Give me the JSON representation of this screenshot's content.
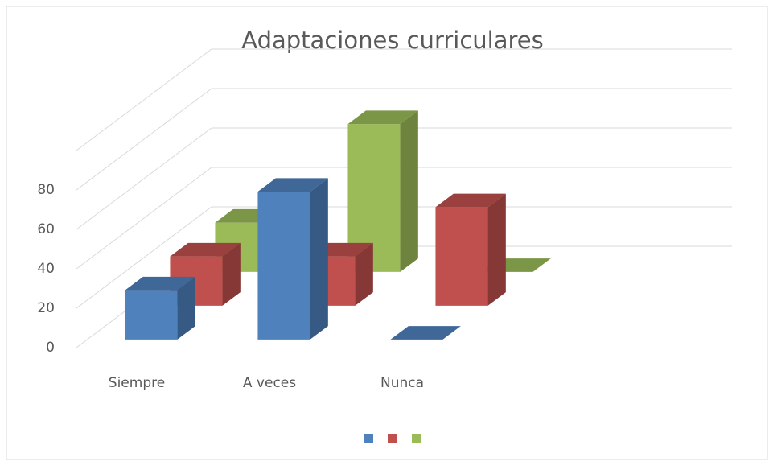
{
  "chart_data": {
    "type": "bar3d",
    "title": "Adaptaciones curriculares",
    "categories": [
      "Siempre",
      "A veces",
      "Nunca"
    ],
    "series": [
      {
        "color": "#4f81bd",
        "values": [
          25,
          75,
          0
        ]
      },
      {
        "color": "#c0504d",
        "values": [
          25,
          25,
          50
        ]
      },
      {
        "color": "#9bbb59",
        "values": [
          25,
          75,
          0
        ]
      }
    ],
    "ylim": [
      0,
      100
    ],
    "yticks": [
      0,
      20,
      40,
      60,
      80
    ],
    "grid": true
  }
}
